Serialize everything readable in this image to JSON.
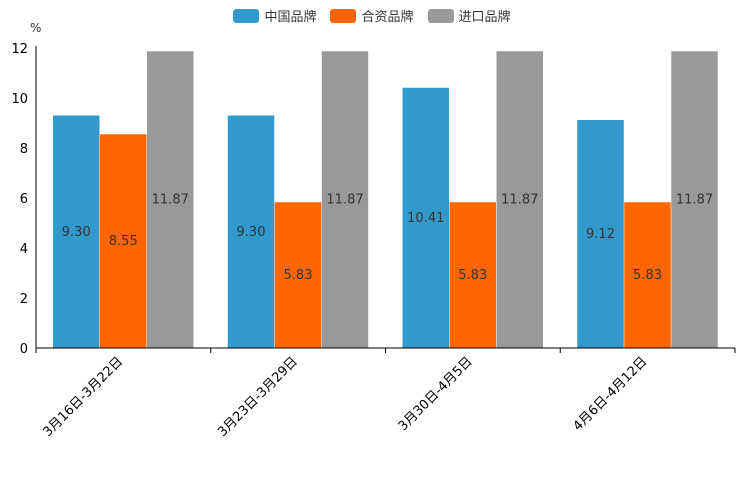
{
  "chart_data": {
    "type": "bar",
    "title": "",
    "xlabel": "",
    "ylabel": "%",
    "ylim": [
      0,
      12
    ],
    "yticks": [
      0,
      2,
      4,
      6,
      8,
      10,
      12
    ],
    "categories": [
      "3月16日-3月22日",
      "3月23日-3月29日",
      "3月30日-4月5日",
      "4月6日-4月12日"
    ],
    "series": [
      {
        "name": "中国品牌",
        "color": "#3399cc",
        "values": [
          9.3,
          9.3,
          10.41,
          9.12
        ],
        "labels": [
          "9.30",
          "9.30",
          "10.41",
          "9.12"
        ]
      },
      {
        "name": "合资品牌",
        "color": "#ff6600",
        "values": [
          8.55,
          5.83,
          5.83,
          5.83
        ],
        "labels": [
          "8.55",
          "5.83",
          "5.83",
          "5.83"
        ]
      },
      {
        "name": "进口品牌",
        "color": "#999999",
        "values": [
          11.87,
          11.87,
          11.87,
          11.87
        ],
        "labels": [
          "11.87",
          "11.87",
          "11.87",
          "11.87"
        ]
      }
    ],
    "legend_position": "top-center",
    "grid": false
  }
}
